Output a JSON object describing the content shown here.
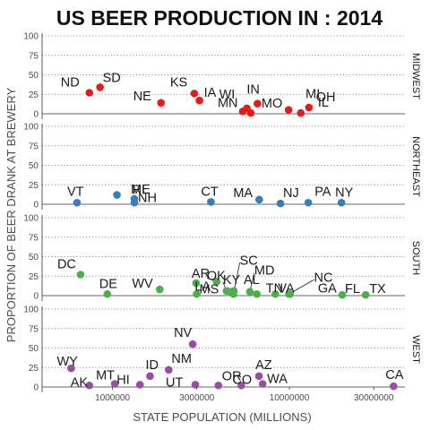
{
  "chart_data": {
    "type": "scatter",
    "title": "US BEER PRODUCTION IN : 2014",
    "xlabel": "STATE  POPULATION (MILLIONS)",
    "ylabel": "PROPORTION OF BEER DRANK AT BREWERY",
    "x_scale": "log",
    "x_ticks": [
      1000000,
      3000000,
      10000000,
      30000000
    ],
    "x_tick_labels": [
      "1000000",
      "3000000",
      "10000000",
      "30000000"
    ],
    "xlim": [
      400000,
      45000000
    ],
    "y_ticks": [
      0,
      25,
      50,
      75,
      100
    ],
    "y_tick_labels": [
      "0",
      "25",
      "50",
      "75",
      "100"
    ],
    "ylim": [
      0,
      100
    ],
    "grid": true,
    "legend": "none",
    "facets": [
      {
        "name": "MIDWEST",
        "color": "#e41a1c",
        "points": [
          {
            "label": "ND",
            "x": 740000,
            "y": 27
          },
          {
            "label": "SD",
            "x": 850000,
            "y": 34
          },
          {
            "label": "NE",
            "x": 1880000,
            "y": 14
          },
          {
            "label": "KS",
            "x": 2900000,
            "y": 26
          },
          {
            "label": "IA",
            "x": 3100000,
            "y": 17
          },
          {
            "label": "WI",
            "x": 5750000,
            "y": 7
          },
          {
            "label": "MN",
            "x": 5450000,
            "y": 3
          },
          {
            "label": "IN",
            "x": 6600000,
            "y": 13
          },
          {
            "label": "MO",
            "x": 6050000,
            "y": 1
          },
          {
            "label": "MI",
            "x": 9900000,
            "y": 5
          },
          {
            "label": "OH",
            "x": 11600000,
            "y": 1
          },
          {
            "label": "IL",
            "x": 12900000,
            "y": 8
          }
        ]
      },
      {
        "name": "NORTHEAST",
        "color": "#377eb8",
        "points": [
          {
            "label": "VT",
            "x": 630000,
            "y": 2
          },
          {
            "label": "RI",
            "x": 1060000,
            "y": 12
          },
          {
            "label": "ME",
            "x": 1330000,
            "y": 7
          },
          {
            "label": "NH",
            "x": 1330000,
            "y": 2
          },
          {
            "label": "CT",
            "x": 3600000,
            "y": 3
          },
          {
            "label": "MA",
            "x": 6750000,
            "y": 6
          },
          {
            "label": "NJ",
            "x": 8900000,
            "y": 1
          },
          {
            "label": "PA",
            "x": 12800000,
            "y": 2
          },
          {
            "label": "NY",
            "x": 19700000,
            "y": 2
          }
        ]
      },
      {
        "name": "SOUTH",
        "color": "#4daf4a",
        "points": [
          {
            "label": "DC",
            "x": 660000,
            "y": 27
          },
          {
            "label": "DE",
            "x": 935000,
            "y": 2
          },
          {
            "label": "WV",
            "x": 1850000,
            "y": 8
          },
          {
            "label": "MS",
            "x": 2990000,
            "y": 2
          },
          {
            "label": "AR",
            "x": 2970000,
            "y": 16
          },
          {
            "label": "OK",
            "x": 3880000,
            "y": 18
          },
          {
            "label": "KY",
            "x": 4410000,
            "y": 6
          },
          {
            "label": "LA",
            "x": 4650000,
            "y": 5
          },
          {
            "label": "SC",
            "x": 4830000,
            "y": 2
          },
          {
            "label": "AL",
            "x": 4850000,
            "y": 6
          },
          {
            "label": "MD",
            "x": 5980000,
            "y": 5
          },
          {
            "label": "TN",
            "x": 6550000,
            "y": 2
          },
          {
            "label": "VA",
            "x": 8330000,
            "y": 2
          },
          {
            "label": "NC",
            "x": 9940000,
            "y": 2
          },
          {
            "label": "GA",
            "x": 10100000,
            "y": 2
          },
          {
            "label": "FL",
            "x": 19900000,
            "y": 1
          },
          {
            "label": "TX",
            "x": 27000000,
            "y": 1
          }
        ]
      },
      {
        "name": "WEST",
        "color": "#984ea3",
        "points": [
          {
            "label": "WY",
            "x": 584000,
            "y": 24
          },
          {
            "label": "AK",
            "x": 740000,
            "y": 2
          },
          {
            "label": "MT",
            "x": 1030000,
            "y": 4
          },
          {
            "label": "HI",
            "x": 1430000,
            "y": 3
          },
          {
            "label": "ID",
            "x": 1630000,
            "y": 14
          },
          {
            "label": "NM",
            "x": 2080000,
            "y": 22
          },
          {
            "label": "NV",
            "x": 2840000,
            "y": 55
          },
          {
            "label": "UT",
            "x": 2940000,
            "y": 3
          },
          {
            "label": "OR",
            "x": 3970000,
            "y": 2
          },
          {
            "label": "CO",
            "x": 5350000,
            "y": 2
          },
          {
            "label": "AZ",
            "x": 6730000,
            "y": 14
          },
          {
            "label": "WA",
            "x": 7060000,
            "y": 4
          },
          {
            "label": "CA",
            "x": 38800000,
            "y": 1
          }
        ]
      }
    ]
  }
}
